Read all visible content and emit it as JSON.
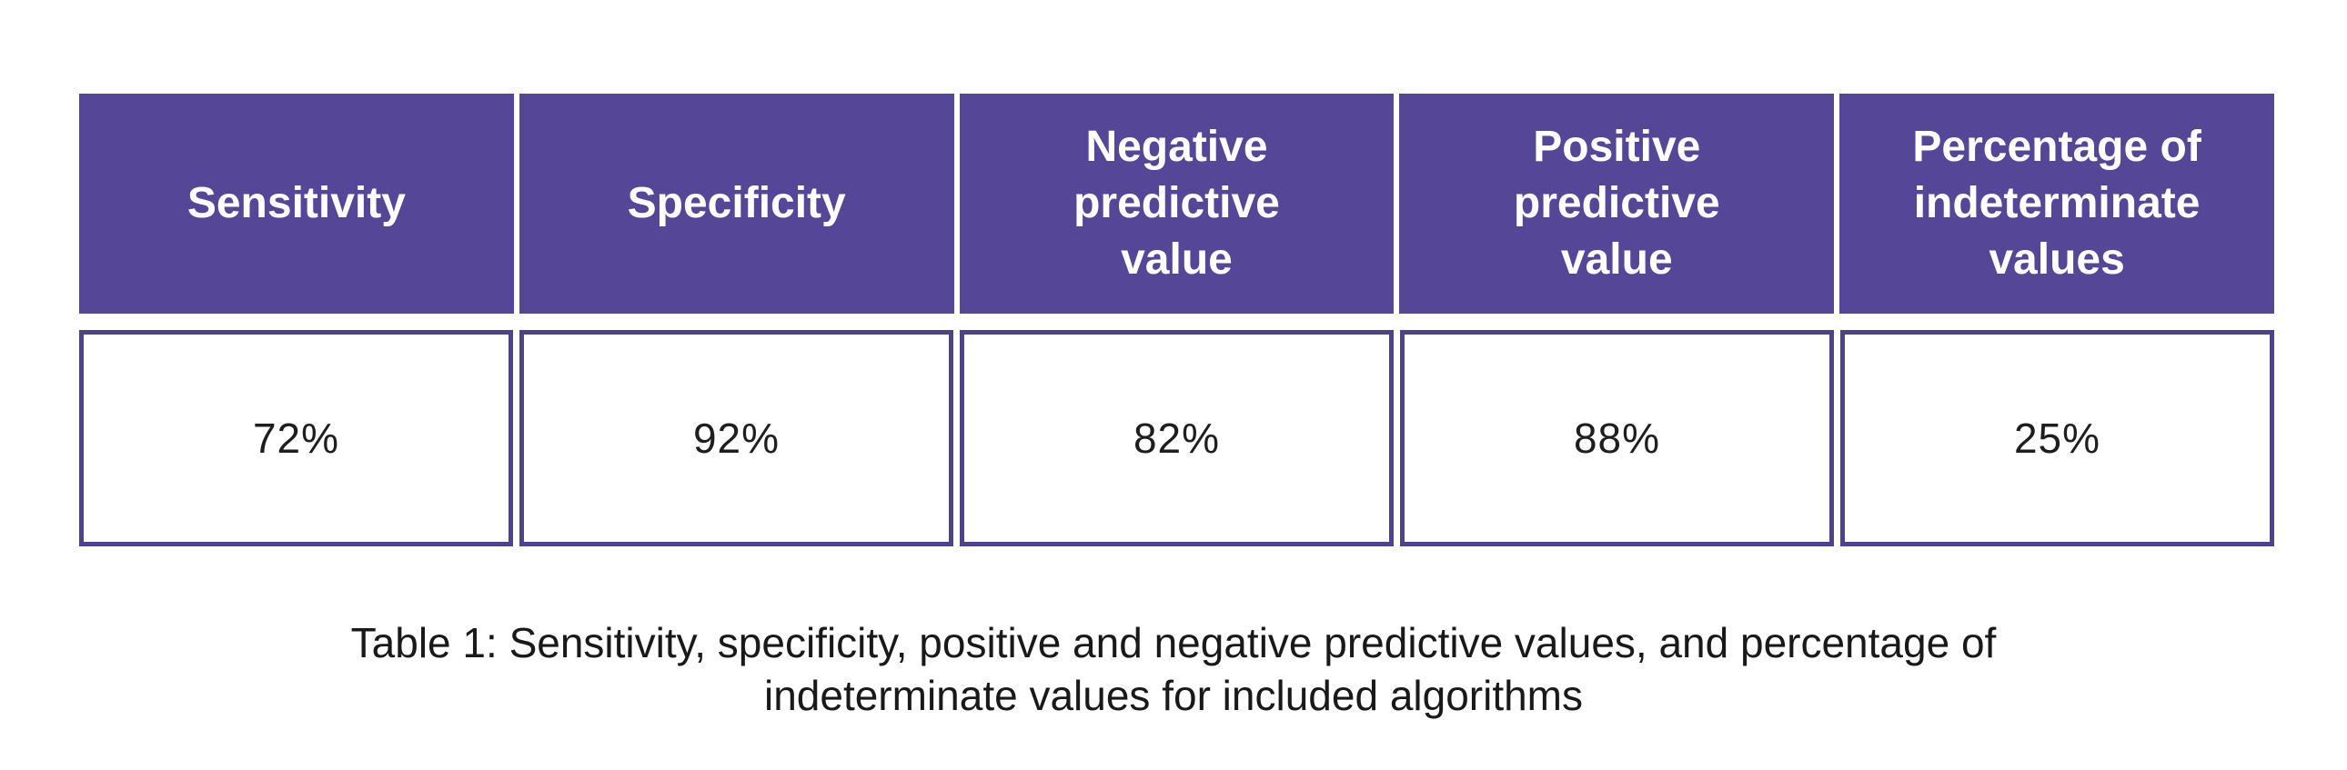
{
  "table": {
    "columns": [
      {
        "header": "Sensitivity",
        "value": "72%"
      },
      {
        "header": "Specificity",
        "value": "92%"
      },
      {
        "header": "Negative predictive value",
        "value": "82%"
      },
      {
        "header": "Positive predictive value",
        "value": "88%"
      },
      {
        "header": "Percentage of indeterminate values",
        "value": "25%"
      }
    ]
  },
  "caption": {
    "full": "Table 1:  Sensitivity, specificity, positive and negative predictive values, and percentage of indeterminate values for included algorithms",
    "line1": "Table 1:  Sensitivity, specificity, positive and negative predictive values, and percentage of",
    "line2": "indeterminate values for included algorithms"
  },
  "colors": {
    "header_bg": "#554697",
    "cell_border": "#4f4191",
    "header_text": "#ffffff",
    "body_text": "#1e1e1e",
    "background": "#ffffff"
  },
  "chart_data": {
    "type": "table",
    "columns": [
      "Sensitivity",
      "Specificity",
      "Negative predictive value",
      "Positive predictive value",
      "Percentage of indeterminate values"
    ],
    "rows": [
      [
        "72%",
        "92%",
        "82%",
        "88%",
        "25%"
      ]
    ],
    "title": "Table 1: Sensitivity, specificity, positive and negative predictive values, and percentage of indeterminate values for included algorithms"
  }
}
